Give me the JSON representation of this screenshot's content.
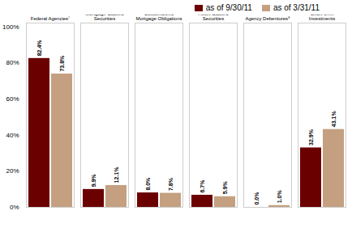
{
  "chart_data": {
    "type": "bar",
    "categories": [
      "Federal Agencies⁷",
      "Commercial\nMortgage-Backed\nSecurities",
      "Collateralized\nMortgage Obligations",
      "Asset-Backed\nSecurities",
      "Agency Debentures⁸",
      "Short-term\nInvestments"
    ],
    "series": [
      {
        "name": "as of 9/30/11",
        "color": "#6B0000",
        "values": [
          82.4,
          9.9,
          8.0,
          6.7,
          0.0,
          32.9
        ],
        "value_labels": [
          "82.4%",
          "9.9%",
          "8.0%",
          "6.7%",
          "0.0%",
          "32.9%"
        ]
      },
      {
        "name": "as of 3/31/11",
        "color": "#C4A080",
        "values": [
          73.8,
          12.1,
          7.8,
          5.9,
          1.0,
          43.1
        ],
        "value_labels": [
          "73.8%",
          "12.1%",
          "7.8%",
          "5.9%",
          "1.0%",
          "43.1%"
        ]
      }
    ],
    "ylim": [
      0,
      102
    ],
    "yticks": [
      {
        "value": 0,
        "label": "0%"
      },
      {
        "value": 20,
        "label": "20%"
      },
      {
        "value": 40,
        "label": "40%"
      },
      {
        "value": 60,
        "label": "60%"
      },
      {
        "value": 80,
        "label": "80%"
      },
      {
        "value": 100,
        "label": "100%"
      }
    ],
    "grid": false,
    "legend": "top",
    "data_labels": true
  }
}
